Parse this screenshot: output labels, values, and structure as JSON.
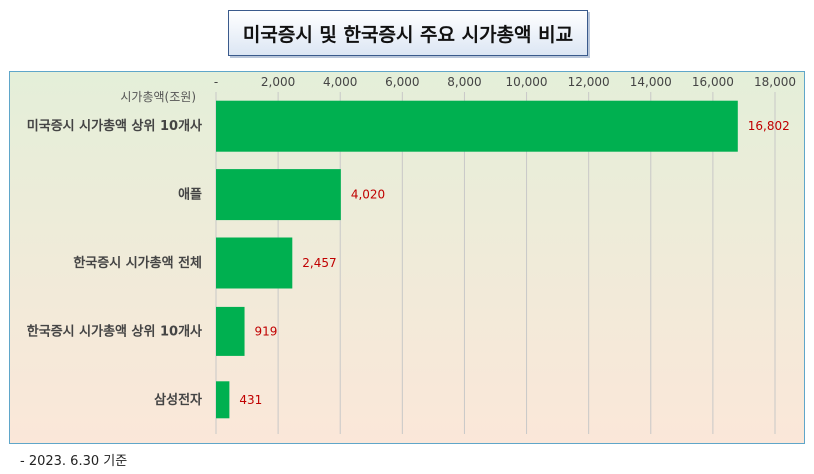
{
  "chart_data": {
    "type": "bar",
    "orientation": "horizontal",
    "title": "미국증시 및 한국증시 주요 시가총액 비교",
    "unit_label": "시가총액(조원)",
    "categories": [
      "미국증시 시가총액 상위 10개사",
      "애플",
      "한국증시 시가총액 전체",
      "한국증시 시가총액 상위 10개사",
      "삼성전자"
    ],
    "values": [
      16802,
      4020,
      2457,
      919,
      431
    ],
    "value_labels": [
      "16,802",
      "4,020",
      "2,457",
      "919",
      "431"
    ],
    "xlim": [
      0,
      18000
    ],
    "x_ticks": [
      0,
      2000,
      4000,
      6000,
      8000,
      10000,
      12000,
      14000,
      16000,
      18000
    ],
    "x_tick_labels": [
      "-",
      "2,000",
      "4,000",
      "6,000",
      "8,000",
      "10,000",
      "12,000",
      "14,000",
      "16,000",
      "18,000"
    ],
    "gridlines": true,
    "bar_color": "#00b050",
    "label_color": "#c00000"
  },
  "footnote": "- 2023. 6.30 기준"
}
